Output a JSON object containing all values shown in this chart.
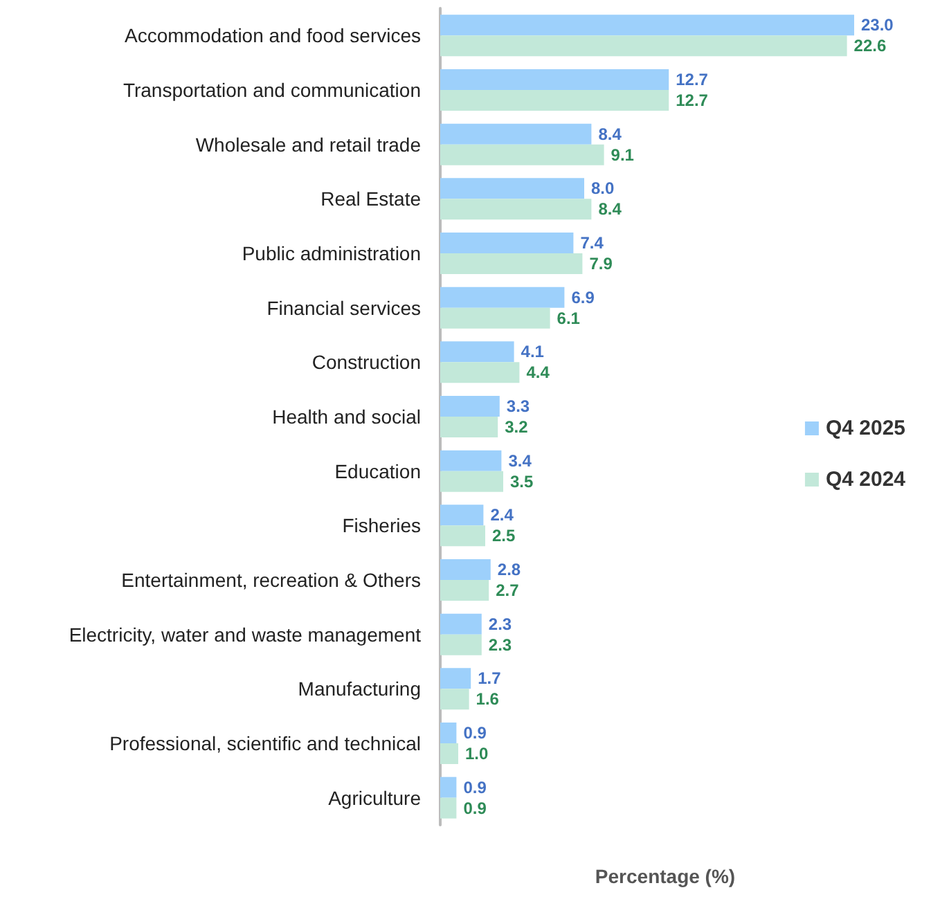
{
  "chart_data": {
    "type": "bar",
    "orientation": "horizontal",
    "xlabel": "Percentage (%)",
    "categories": [
      "Accommodation and food services",
      "Transportation and communication",
      "Wholesale and retail trade",
      "Real Estate",
      "Public administration",
      "Financial services",
      "Construction",
      "Health and social",
      "Education",
      "Fisheries",
      "Entertainment, recreation & Others",
      "Electricity, water and waste management",
      "Manufacturing",
      "Professional, scientific and technical",
      "Agriculture"
    ],
    "series": [
      {
        "name": "Q4 2025",
        "color": "#9dd0fb",
        "values": [
          23.0,
          12.7,
          8.4,
          8.0,
          7.4,
          6.9,
          4.1,
          3.3,
          3.4,
          2.4,
          2.8,
          2.3,
          1.7,
          0.9,
          0.9
        ],
        "value_labels": [
          "23.0",
          "12.7",
          "8.4",
          "8.0",
          "7.4",
          "6.9",
          "4.1",
          "3.3",
          "3.4",
          "2.4",
          "2.8",
          "2.3",
          "1.7",
          "0.9",
          "0.9"
        ]
      },
      {
        "name": "Q4 2024",
        "color": "#c2e8d9",
        "values": [
          22.6,
          12.7,
          9.1,
          8.4,
          7.9,
          6.1,
          4.4,
          3.2,
          3.5,
          2.5,
          2.7,
          2.3,
          1.6,
          1.0,
          0.9
        ],
        "value_labels": [
          "22.6",
          "12.7",
          "9.1",
          "8.4",
          "7.9",
          "6.1",
          "4.4",
          "3.2",
          "3.5",
          "2.5",
          "2.7",
          "2.3",
          "1.6",
          "1.0",
          "0.9"
        ]
      }
    ],
    "legend": "right"
  }
}
